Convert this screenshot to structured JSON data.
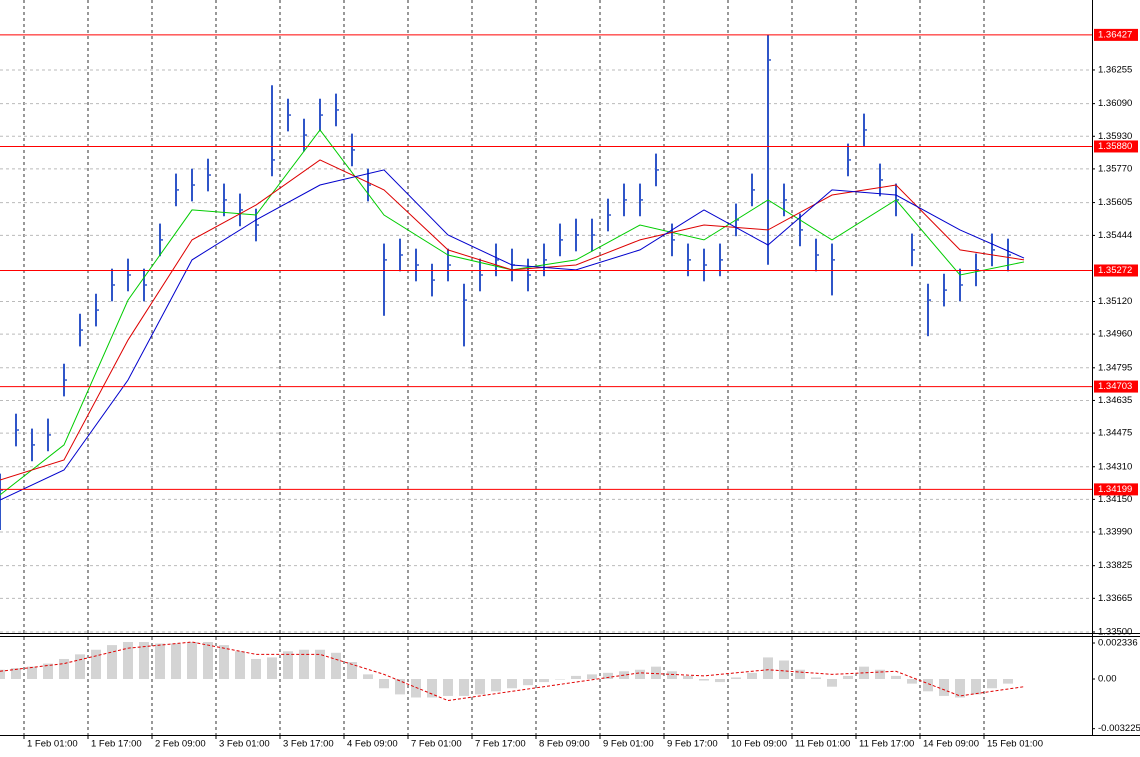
{
  "chart_data": [
    {
      "type": "ohlc",
      "color": "#2f55c8",
      "grid": true,
      "level_color": "#ff0000",
      "xlim": [
        0,
        273
      ],
      "ylim": [
        1.33495,
        1.36598
      ],
      "yticks": [
        1.36255,
        {
          "value": 1.3609,
          "label": "1.36090"
        },
        {
          "value": 1.3593,
          "label": "1.35930"
        },
        {
          "value": 1.3577,
          "label": "1.35770"
        },
        1.35605,
        1.35444,
        {
          "value": 1.3512,
          "label": "1.35120"
        },
        {
          "value": 1.3496,
          "label": "1.34960"
        },
        1.34795,
        1.34635,
        1.34475,
        {
          "value": 1.3431,
          "label": "1.34310"
        },
        {
          "value": 1.3415,
          "label": "1.34150"
        },
        {
          "value": 1.3399,
          "label": "1.33990"
        },
        1.33825,
        1.33665,
        {
          "value": 1.335,
          "label": "1.33500"
        }
      ],
      "xticks": [
        {
          "value": 6,
          "label": "1 Feb 01:00"
        },
        {
          "value": 22,
          "label": "1 Feb 17:00"
        },
        {
          "value": 38,
          "label": "2 Feb 09:00"
        },
        {
          "value": 54,
          "label": "3 Feb 01:00"
        },
        {
          "value": 70,
          "label": "3 Feb 17:00"
        },
        {
          "value": 86,
          "label": "4 Feb 09:00"
        },
        {
          "value": 102,
          "label": "7 Feb 01:00"
        },
        {
          "value": 118,
          "label": "7 Feb 17:00"
        },
        {
          "value": 134,
          "label": "8 Feb 09:00"
        },
        {
          "value": 150,
          "label": "9 Feb 01:00"
        },
        {
          "value": 166,
          "label": "9 Feb 17:00"
        },
        {
          "value": 182,
          "label": "10 Feb 09:00"
        },
        {
          "value": 198,
          "label": "11 Feb 01:00"
        },
        {
          "value": 214,
          "label": "11 Feb 17:00"
        },
        {
          "value": 230,
          "label": "14 Feb 09:00"
        },
        {
          "value": 246,
          "label": "15 Feb 01:00"
        }
      ],
      "levels": [
        1.36427,
        {
          "value": 1.3588,
          "label": "1.35880"
        },
        1.35272,
        1.34703,
        1.34199
      ],
      "x": [
        0,
        4,
        8,
        12,
        16,
        20,
        24,
        28,
        32,
        36,
        40,
        44,
        48,
        52,
        56,
        60,
        64,
        68,
        72,
        76,
        80,
        84,
        88,
        92,
        96,
        100,
        104,
        108,
        112,
        116,
        120,
        124,
        128,
        132,
        136,
        140,
        144,
        148,
        152,
        156,
        160,
        164,
        168,
        172,
        176,
        180,
        184,
        188,
        192,
        196,
        200,
        204,
        208,
        212,
        216,
        220,
        224,
        228,
        232,
        236,
        240,
        244,
        248,
        252
      ],
      "high": [
        1.34276,
        1.3457,
        1.34497,
        1.34546,
        1.34815,
        1.3506,
        1.35158,
        1.35281,
        1.3533,
        1.35281,
        1.35502,
        1.35747,
        1.35771,
        1.3582,
        1.35698,
        1.35649,
        1.35575,
        1.3618,
        1.36114,
        1.36016,
        1.36114,
        1.36139,
        1.35943,
        1.35771,
        1.35404,
        1.35428,
        1.35379,
        1.35305,
        1.35379,
        1.35207,
        1.3533,
        1.35404,
        1.35379,
        1.3533,
        1.35404,
        1.35502,
        1.35526,
        1.35526,
        1.35624,
        1.35698,
        1.35698,
        1.35845,
        1.35502,
        1.35404,
        1.35379,
        1.35404,
        1.356,
        1.35747,
        1.36427,
        1.35698,
        1.35551,
        1.35428,
        1.35404,
        1.35894,
        1.36041,
        1.35796,
        1.35698,
        1.35453,
        1.35207,
        1.35256,
        1.35281,
        1.35355,
        1.35453,
        1.35428
      ],
      "low": [
        1.34,
        1.3441,
        1.34337,
        1.34386,
        1.34655,
        1.349,
        1.34998,
        1.35121,
        1.3517,
        1.35121,
        1.35342,
        1.35587,
        1.35611,
        1.3566,
        1.35538,
        1.35489,
        1.35415,
        1.35734,
        1.35954,
        1.35856,
        1.35954,
        1.35979,
        1.35783,
        1.35611,
        1.3505,
        1.35268,
        1.35219,
        1.35145,
        1.35219,
        1.349,
        1.3517,
        1.35244,
        1.35219,
        1.3517,
        1.35244,
        1.35342,
        1.35366,
        1.35366,
        1.35464,
        1.35538,
        1.35538,
        1.35685,
        1.35342,
        1.35244,
        1.35219,
        1.35244,
        1.3544,
        1.35587,
        1.353,
        1.35538,
        1.35391,
        1.35268,
        1.3515,
        1.35734,
        1.35881,
        1.35636,
        1.35538,
        1.35293,
        1.3495,
        1.35096,
        1.35121,
        1.35195,
        1.35293,
        1.35268
      ],
      "close": [
        1.34196,
        1.3449,
        1.34417,
        1.34466,
        1.34735,
        1.3498,
        1.35078,
        1.35201,
        1.3525,
        1.35201,
        1.35422,
        1.35667,
        1.35691,
        1.3574,
        1.35618,
        1.35569,
        1.35495,
        1.35814,
        1.36034,
        1.35936,
        1.36034,
        1.36059,
        1.35863,
        1.35691,
        1.35324,
        1.35348,
        1.35299,
        1.35225,
        1.35299,
        1.35127,
        1.3525,
        1.35324,
        1.35299,
        1.3525,
        1.35324,
        1.35422,
        1.35446,
        1.35446,
        1.35544,
        1.35618,
        1.35618,
        1.35765,
        1.35422,
        1.35324,
        1.35299,
        1.35324,
        1.3552,
        1.35667,
        1.36304,
        1.35618,
        1.35471,
        1.35348,
        1.35324,
        1.35814,
        1.35961,
        1.35716,
        1.35618,
        1.35373,
        1.35127,
        1.35176,
        1.35201,
        1.35275,
        1.35373,
        1.35348
      ],
      "series": [
        {
          "color": "#00cc00",
          "x": [
            0,
            16,
            32,
            48,
            64,
            80,
            96,
            112,
            128,
            144,
            160,
            176,
            192,
            208,
            224,
            240,
            256
          ],
          "values": [
            1.34172,
            1.34417,
            1.35127,
            1.35569,
            1.35544,
            1.35961,
            1.35544,
            1.35348,
            1.35275,
            1.35324,
            1.35495,
            1.35422,
            1.35618,
            1.35422,
            1.35618,
            1.3525,
            1.35314
          ]
        },
        {
          "color": "#dd0000",
          "x": [
            0,
            16,
            32,
            48,
            64,
            80,
            96,
            112,
            128,
            144,
            160,
            176,
            192,
            208,
            224,
            240,
            256
          ],
          "values": [
            1.34245,
            1.34343,
            1.34931,
            1.35422,
            1.35593,
            1.35814,
            1.35667,
            1.35373,
            1.35275,
            1.35299,
            1.35422,
            1.35495,
            1.35471,
            1.35642,
            1.35691,
            1.35373,
            1.35324
          ]
        },
        {
          "color": "#0000cc",
          "x": [
            0,
            16,
            32,
            48,
            64,
            80,
            96,
            112,
            128,
            144,
            160,
            176,
            192,
            208,
            224,
            240,
            256
          ],
          "values": [
            1.34147,
            1.34294,
            1.34735,
            1.35324,
            1.3552,
            1.35691,
            1.35765,
            1.35446,
            1.35299,
            1.35275,
            1.35373,
            1.35569,
            1.35397,
            1.35667,
            1.35642,
            1.35471,
            1.35333
          ]
        }
      ]
    },
    {
      "type": "macd",
      "color": "#b8b8b8",
      "xlim": [
        0,
        273
      ],
      "ylim": [
        -0.003636,
        0.002726
      ],
      "yticks": [
        0.002336,
        {
          "value": 0,
          "label": "0.00"
        },
        -0.003225
      ],
      "x": [
        0,
        4,
        8,
        12,
        16,
        20,
        24,
        28,
        32,
        36,
        40,
        44,
        48,
        52,
        56,
        60,
        64,
        68,
        72,
        76,
        80,
        84,
        88,
        92,
        96,
        100,
        104,
        108,
        112,
        116,
        120,
        124,
        128,
        132,
        136,
        140,
        144,
        148,
        152,
        156,
        160,
        164,
        168,
        172,
        176,
        180,
        184,
        188,
        192,
        196,
        200,
        204,
        208,
        212,
        216,
        220,
        224,
        228,
        232,
        236,
        240,
        244,
        248,
        252
      ],
      "values": [
        0.0006,
        0.0007,
        0.0008,
        0.001,
        0.0013,
        0.0016,
        0.0019,
        0.0022,
        0.0024,
        0.0024,
        0.0023,
        0.0023,
        0.0024,
        0.0024,
        0.0022,
        0.0018,
        0.0013,
        0.0014,
        0.0018,
        0.0019,
        0.0019,
        0.0017,
        0.0011,
        0.0003,
        -0.0006,
        -0.001,
        -0.0012,
        -0.0012,
        -0.0011,
        -0.0011,
        -0.001,
        -0.0008,
        -0.0006,
        -0.0004,
        -0.0002,
        0,
        0.0002,
        0.0003,
        0.0004,
        0.0005,
        0.0006,
        0.0008,
        0.0005,
        0.0002,
        -0.0001,
        -0.0002,
        0.0001,
        0.0004,
        0.0014,
        0.0012,
        0.0006,
        0.0001,
        -0.0005,
        0.0002,
        0.0008,
        0.0006,
        0.0002,
        -0.0003,
        -0.0008,
        -0.0011,
        -0.0012,
        -0.001,
        -0.0006,
        -0.0003
      ],
      "series": [
        {
          "color": "#e00000",
          "x": [
            0,
            16,
            32,
            48,
            64,
            80,
            96,
            112,
            128,
            144,
            160,
            176,
            192,
            208,
            224,
            240,
            256
          ],
          "values": [
            0.0005,
            0.001,
            0.002,
            0.0024,
            0.0016,
            0.0016,
            0.0003,
            -0.0014,
            -0.0008,
            -0.0002,
            0.0004,
            0.0002,
            0.0006,
            0.0003,
            0.0005,
            -0.0011,
            -0.0005
          ]
        }
      ]
    }
  ]
}
